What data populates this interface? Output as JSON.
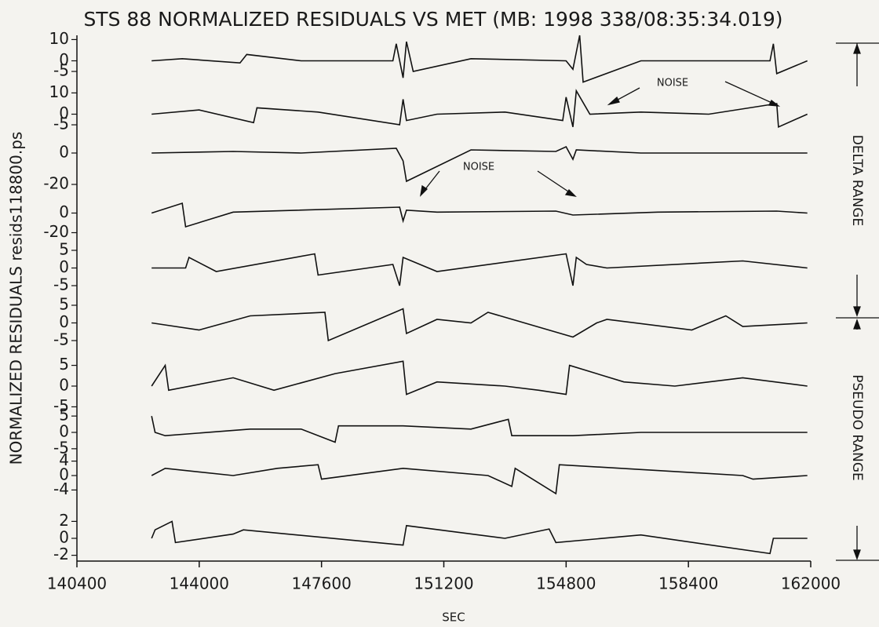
{
  "chart_data": {
    "type": "line",
    "title": "STS 88 NORMALIZED RESIDUALS VS MET (MB: 1998 338/08:35:34.019)",
    "x_label": "SEC",
    "y_label": "NORMALIZED RESIDUALS resids118800.ps",
    "annotations": [
      "NOISE",
      "NOISE"
    ],
    "range_labels": [
      "DELTA RANGE",
      "PSEUDO RANGE"
    ],
    "color": "#111111",
    "xlim": [
      140400,
      162000
    ],
    "xticks": [
      140400,
      144000,
      147600,
      151200,
      154800,
      158400,
      162000
    ],
    "panels": [
      {
        "ylim": [
          -12,
          12
        ],
        "yticks": [
          10,
          0,
          -5
        ],
        "x": [
          142600,
          143500,
          145200,
          145400,
          147000,
          149700,
          149800,
          150000,
          150100,
          150300,
          152000,
          154800,
          155000,
          155200,
          155300,
          157000,
          160800,
          160900,
          161000,
          161900
        ],
        "values": [
          0,
          1,
          -1,
          3,
          0,
          0,
          8,
          -8,
          9,
          -5,
          1,
          0,
          -4,
          12,
          -10,
          0,
          0,
          8,
          -6,
          0
        ]
      },
      {
        "ylim": [
          -12,
          12
        ],
        "yticks": [
          10,
          0,
          -5
        ],
        "x": [
          142600,
          144000,
          145600,
          145700,
          147500,
          149900,
          150000,
          150100,
          151000,
          153000,
          154700,
          154800,
          155000,
          155100,
          155500,
          157000,
          159000,
          161000,
          161050,
          161900
        ],
        "values": [
          0,
          2,
          -4,
          3,
          1,
          -5,
          7,
          -3,
          0,
          1,
          -3,
          8,
          -6,
          11,
          0,
          1,
          0,
          5,
          -6,
          0
        ]
      },
      {
        "ylim": [
          -25,
          7
        ],
        "yticks": [
          0,
          -20
        ],
        "x": [
          142600,
          145000,
          147000,
          149800,
          150000,
          150100,
          152000,
          154500,
          154800,
          155000,
          155100,
          157000,
          161900
        ],
        "values": [
          0,
          1,
          0,
          3,
          -5,
          -18,
          2,
          1,
          4,
          -4,
          2,
          0,
          0
        ]
      },
      {
        "ylim": [
          -30,
          18
        ],
        "yticks": [
          0,
          -20
        ],
        "x": [
          142600,
          143500,
          143600,
          145000,
          149900,
          150000,
          150100,
          151000,
          154500,
          155000,
          157500,
          161000,
          161900
        ],
        "values": [
          0,
          10,
          -14,
          1,
          6,
          -8,
          3,
          1,
          2,
          -2,
          1,
          2,
          0
        ]
      },
      {
        "ylim": [
          -7,
          7
        ],
        "yticks": [
          5,
          0,
          -5
        ],
        "x": [
          142600,
          143600,
          143700,
          144500,
          147400,
          147500,
          149700,
          149900,
          150000,
          151000,
          154800,
          155000,
          155100,
          155400,
          156000,
          160000,
          161900
        ],
        "values": [
          0,
          0,
          3,
          -1,
          4,
          -2,
          1,
          -5,
          3,
          -1,
          4,
          -5,
          3,
          1,
          0,
          2,
          0
        ]
      },
      {
        "ylim": [
          -7,
          7
        ],
        "yticks": [
          5,
          0,
          -5
        ],
        "x": [
          142600,
          144000,
          145500,
          147700,
          147800,
          150000,
          150100,
          151000,
          152000,
          152500,
          155000,
          155700,
          156000,
          158500,
          159500,
          160000,
          161900
        ],
        "values": [
          0,
          -2,
          2,
          3,
          -5,
          4,
          -3,
          1,
          0,
          3,
          -4,
          0,
          1,
          -2,
          2,
          -1,
          0
        ]
      },
      {
        "ylim": [
          -7,
          7
        ],
        "yticks": [
          5,
          0,
          -5
        ],
        "x": [
          142600,
          143000,
          143100,
          145000,
          146200,
          148000,
          150000,
          150100,
          151000,
          153000,
          154000,
          154800,
          154900,
          156500,
          158000,
          160000,
          161900
        ],
        "values": [
          0,
          5,
          -1,
          2,
          -1,
          3,
          6,
          -2,
          1,
          0,
          -1,
          -2,
          5,
          1,
          0,
          2,
          0
        ]
      },
      {
        "ylim": [
          -6,
          6
        ],
        "yticks": [
          5,
          0,
          -5
        ],
        "x": [
          142600,
          142700,
          143000,
          145500,
          147000,
          148000,
          148100,
          150000,
          152000,
          153100,
          153200,
          155000,
          157000,
          161900
        ],
        "values": [
          5,
          0,
          -1,
          1,
          1,
          -3,
          2,
          2,
          1,
          4,
          -1,
          -1,
          0,
          0
        ]
      },
      {
        "ylim": [
          -5,
          5
        ],
        "yticks": [
          4,
          0,
          -4
        ],
        "x": [
          142600,
          143000,
          145000,
          146300,
          147500,
          147600,
          150000,
          152500,
          153200,
          153300,
          154500,
          154600,
          160000,
          160300,
          161900
        ],
        "values": [
          0,
          2,
          0,
          2,
          3,
          -1,
          2,
          0,
          -3,
          2,
          -5,
          3,
          0,
          -1,
          0
        ]
      },
      {
        "ylim": [
          -2.5,
          2.5
        ],
        "yticks": [
          2,
          0,
          -2
        ],
        "x": [
          142600,
          142700,
          143200,
          143300,
          145000,
          145300,
          150000,
          150100,
          153000,
          154300,
          154500,
          157000,
          160800,
          160900,
          161900
        ],
        "values": [
          0,
          1,
          2,
          -0.5,
          0.5,
          1,
          -0.8,
          1.5,
          0,
          1.1,
          -0.5,
          0.4,
          -1.8,
          0,
          0
        ]
      }
    ]
  }
}
